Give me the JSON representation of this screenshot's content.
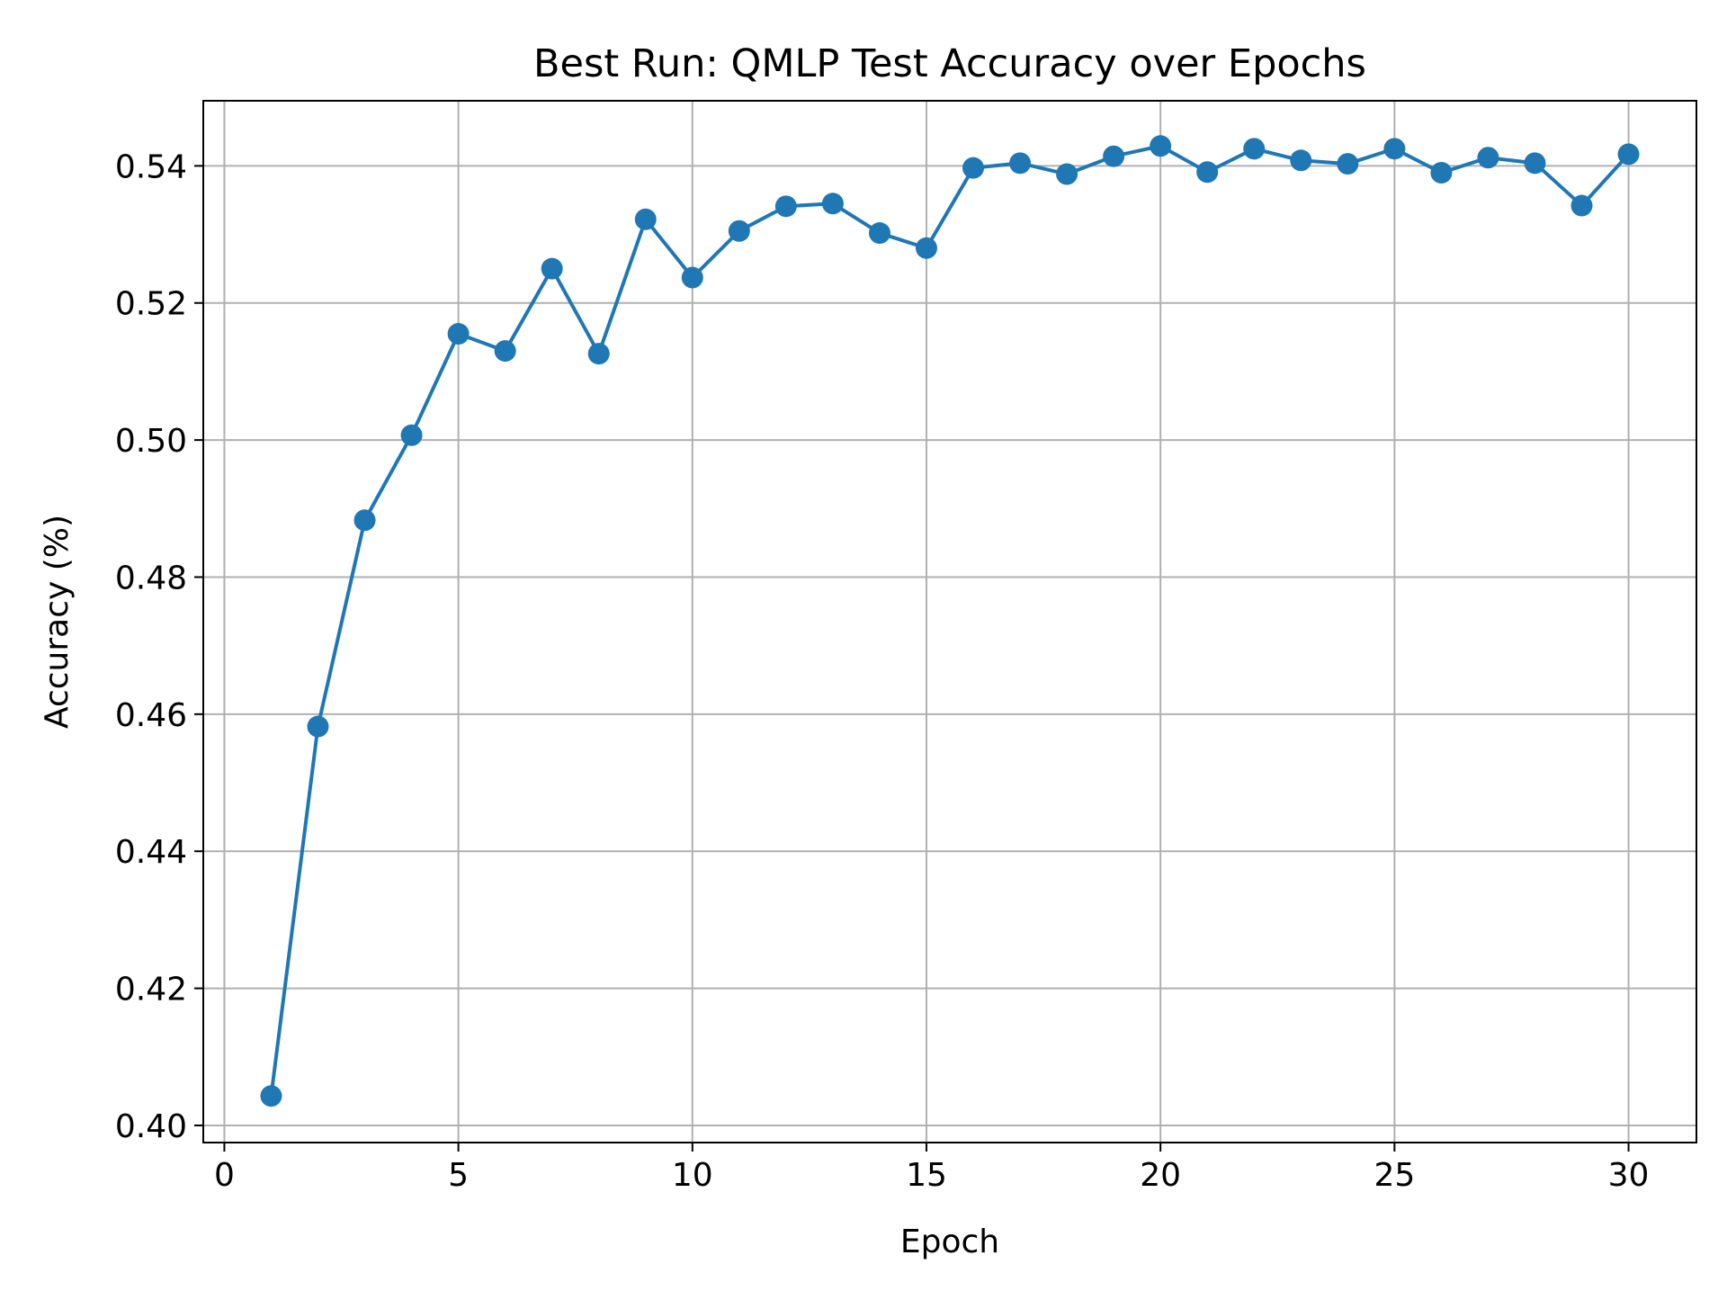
{
  "chart_data": {
    "type": "line",
    "title": "Best Run: QMLP Test Accuracy over Epochs",
    "xlabel": "Epoch",
    "ylabel": "Accuracy (%)",
    "xlim": [
      -0.45,
      31.45
    ],
    "ylim": [
      0.3975,
      0.5495
    ],
    "x_ticks": [
      0,
      5,
      10,
      15,
      20,
      25,
      30
    ],
    "y_ticks": [
      0.4,
      0.42,
      0.44,
      0.46,
      0.48,
      0.5,
      0.52,
      0.54
    ],
    "x_tick_labels": [
      "0",
      "5",
      "10",
      "15",
      "20",
      "25",
      "30"
    ],
    "y_tick_labels": [
      "0.40",
      "0.42",
      "0.44",
      "0.46",
      "0.48",
      "0.50",
      "0.52",
      "0.54"
    ],
    "grid": true,
    "legend": false,
    "series": [
      {
        "color": "#1f77b4",
        "marker": "circle",
        "x": [
          1,
          2,
          3,
          4,
          5,
          6,
          7,
          8,
          9,
          10,
          11,
          12,
          13,
          14,
          15,
          16,
          17,
          18,
          19,
          20,
          21,
          22,
          23,
          24,
          25,
          26,
          27,
          28,
          29,
          30
        ],
        "values": [
          0.4043,
          0.4582,
          0.4883,
          0.5007,
          0.5155,
          0.513,
          0.525,
          0.5126,
          0.5322,
          0.5237,
          0.5305,
          0.5341,
          0.5345,
          0.5302,
          0.528,
          0.5397,
          0.5404,
          0.5388,
          0.5414,
          0.5429,
          0.5391,
          0.5425,
          0.5408,
          0.5403,
          0.5425,
          0.539,
          0.5412,
          0.5404,
          0.5342,
          0.5417
        ]
      }
    ]
  }
}
